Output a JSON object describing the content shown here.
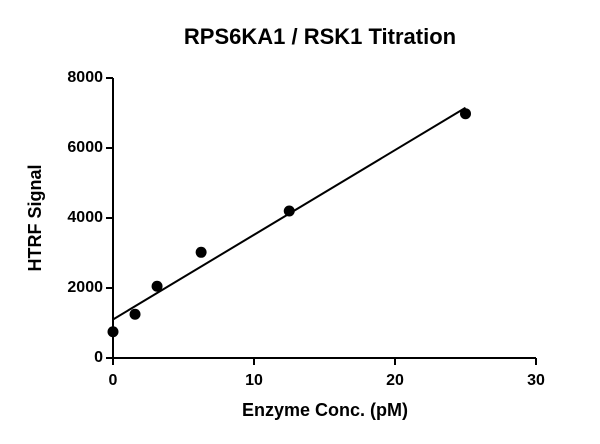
{
  "chart_data": {
    "type": "scatter",
    "title": "RPS6KA1 / RSK1 Titration",
    "x_label": "Enzyme Conc. (pM)",
    "y_label": "HTRF Signal",
    "x": [
      0,
      1.5625,
      3.125,
      6.25,
      12.5,
      25
    ],
    "values": [
      750,
      1250,
      2050,
      3020,
      4200,
      6980
    ],
    "color": "#000000",
    "fit_line": {
      "x": [
        0,
        25
      ],
      "values": [
        1100,
        7150
      ]
    },
    "xlim": [
      0,
      30
    ],
    "xticks": [
      0,
      10,
      20,
      30
    ],
    "ylim": [
      0,
      8000
    ],
    "yticks": [
      0,
      2000,
      4000,
      6000,
      8000
    ]
  }
}
